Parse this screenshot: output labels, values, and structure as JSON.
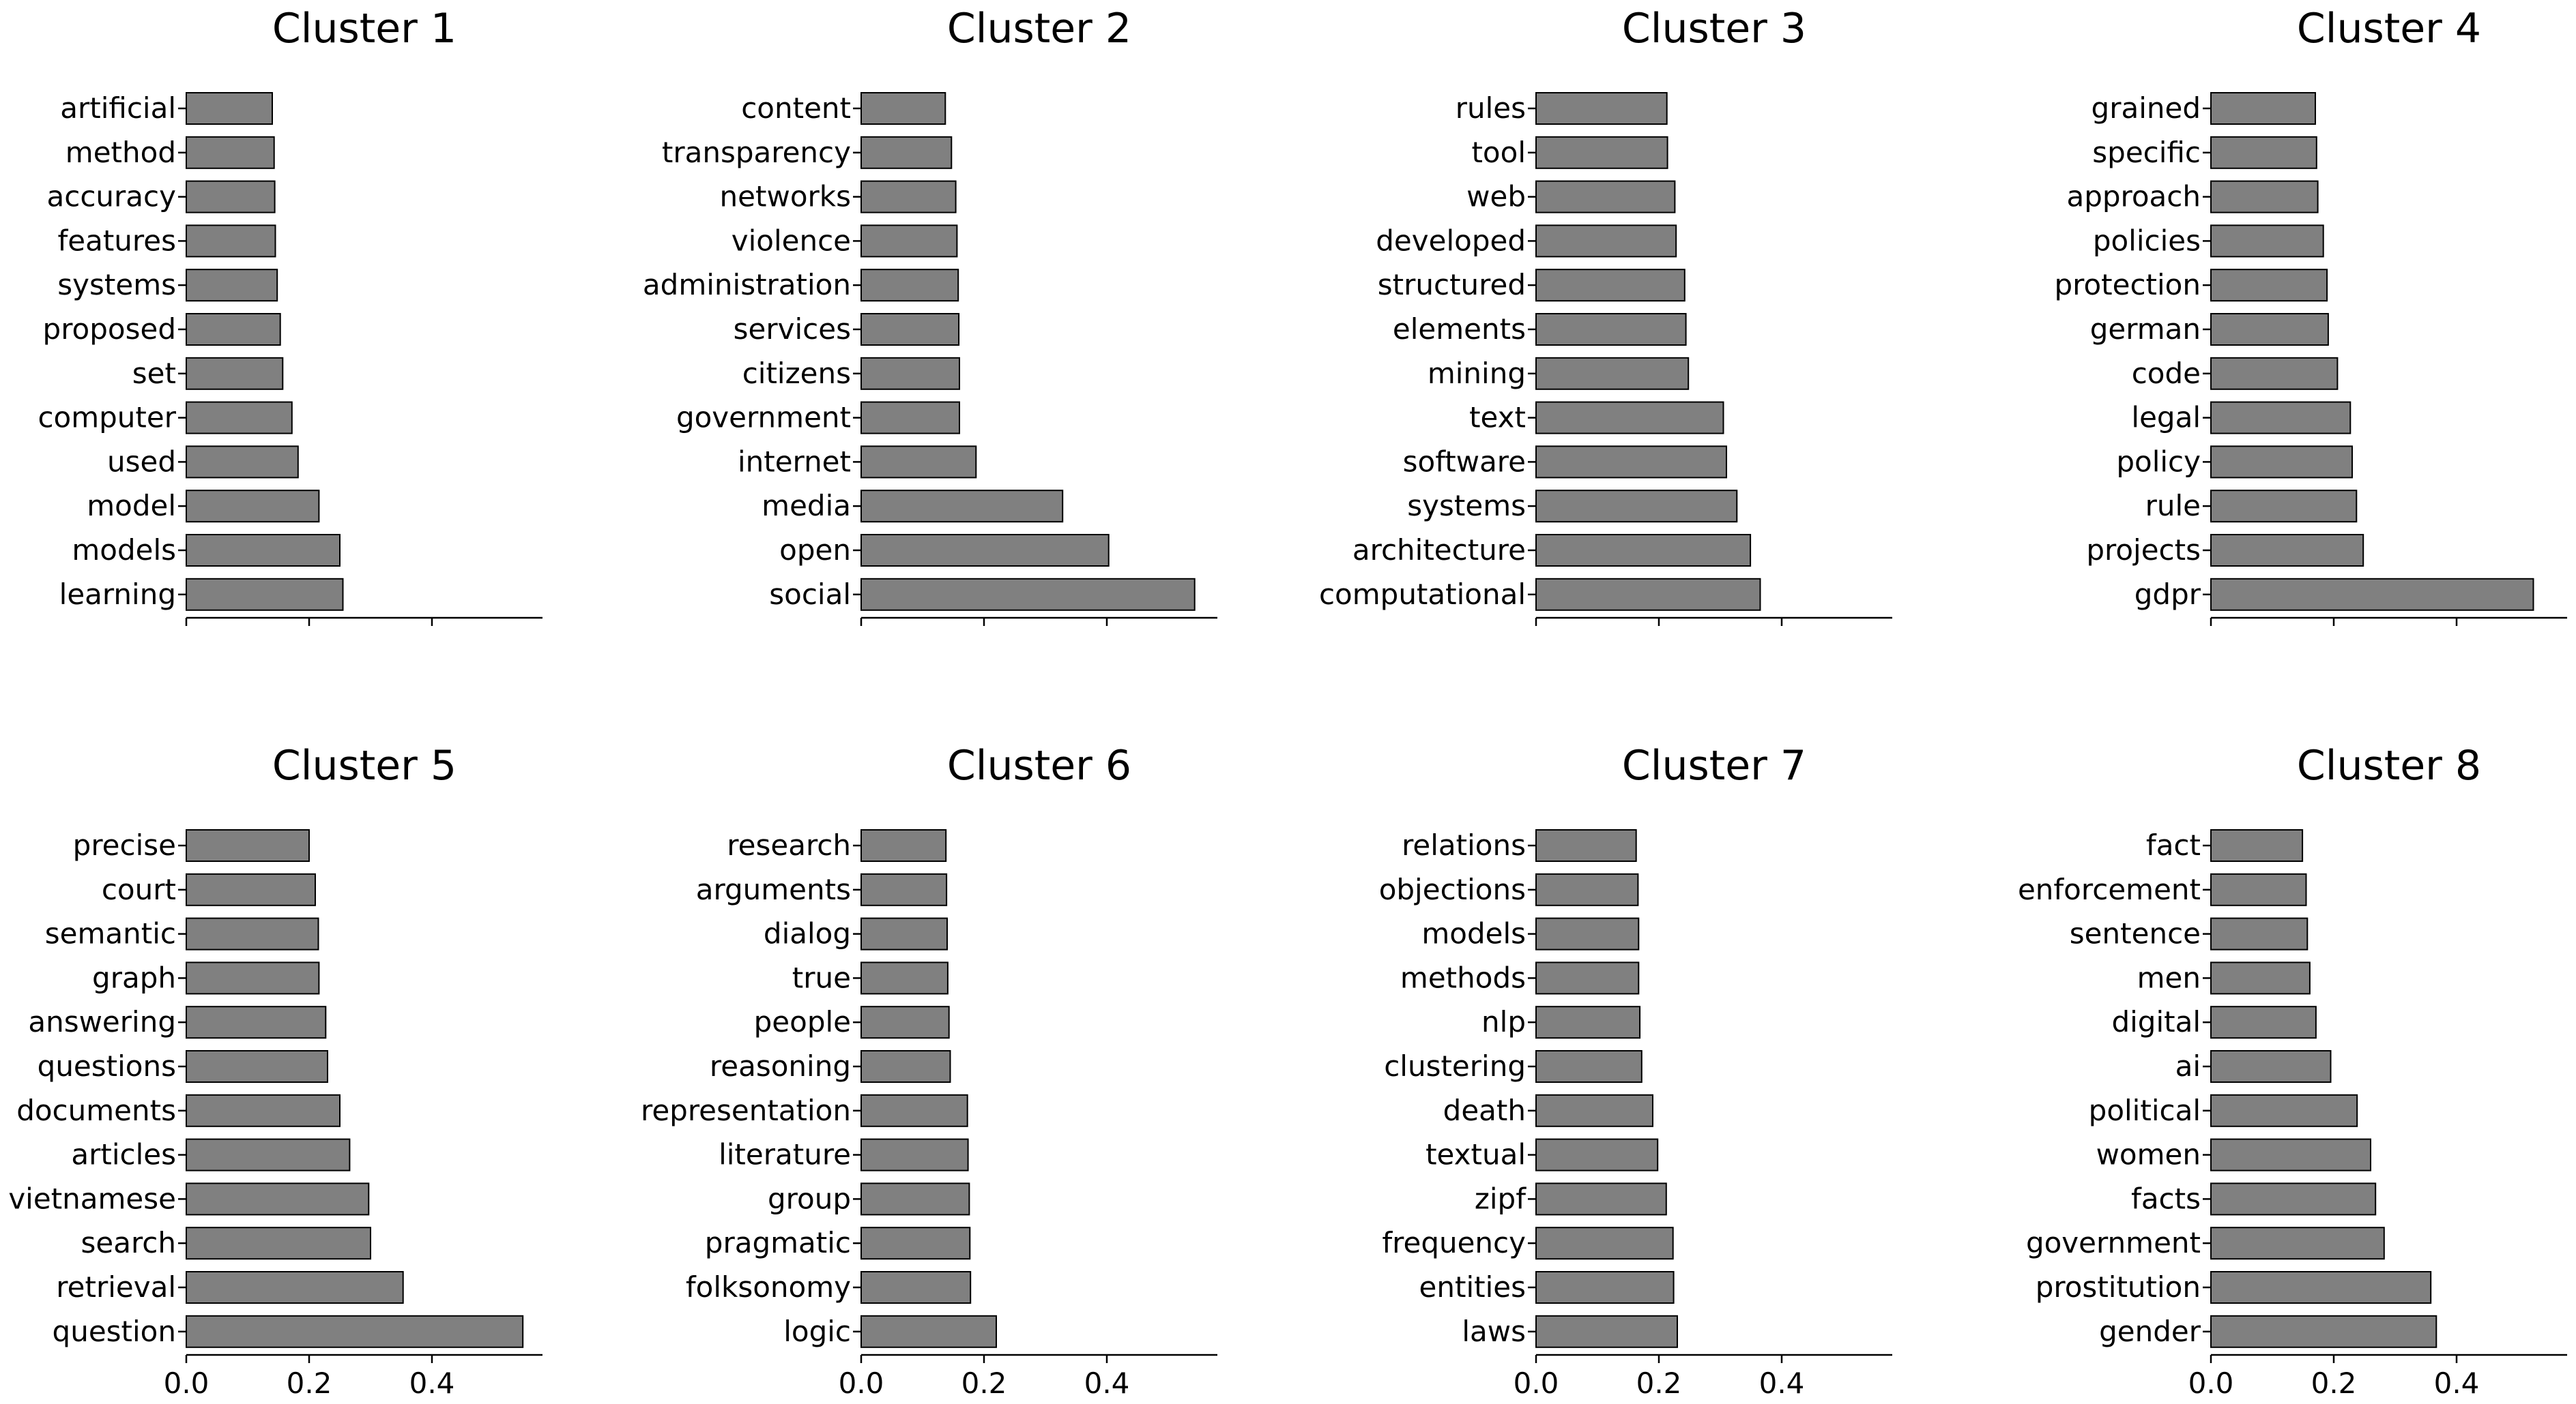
{
  "figure": {
    "bar_color": "#808080",
    "edge_color": "#000000"
  },
  "chart_data": [
    {
      "type": "bar",
      "orientation": "horizontal",
      "title": "Cluster 1",
      "xlim": [
        0,
        0.58
      ],
      "xticks": [
        "0.0",
        "0.2",
        "0.4"
      ],
      "show_tick_labels": false,
      "categories": [
        "artificial",
        "method",
        "accuracy",
        "features",
        "systems",
        "proposed",
        "set",
        "computer",
        "used",
        "model",
        "models",
        "learning"
      ],
      "values": [
        0.14,
        0.143,
        0.144,
        0.145,
        0.148,
        0.153,
        0.157,
        0.172,
        0.182,
        0.216,
        0.25,
        0.255
      ]
    },
    {
      "type": "bar",
      "orientation": "horizontal",
      "title": "Cluster 2",
      "xlim": [
        0,
        0.58
      ],
      "xticks": [
        "0.0",
        "0.2",
        "0.4"
      ],
      "show_tick_labels": false,
      "categories": [
        "content",
        "transparency",
        "networks",
        "violence",
        "administration",
        "services",
        "citizens",
        "government",
        "internet",
        "media",
        "open",
        "social"
      ],
      "values": [
        0.137,
        0.147,
        0.154,
        0.156,
        0.158,
        0.159,
        0.16,
        0.16,
        0.187,
        0.328,
        0.403,
        0.543
      ]
    },
    {
      "type": "bar",
      "orientation": "horizontal",
      "title": "Cluster 3",
      "xlim": [
        0,
        0.58
      ],
      "xticks": [
        "0.0",
        "0.2",
        "0.4"
      ],
      "show_tick_labels": false,
      "categories": [
        "rules",
        "tool",
        "web",
        "developed",
        "structured",
        "elements",
        "mining",
        "text",
        "software",
        "systems",
        "architecture",
        "computational"
      ],
      "values": [
        0.213,
        0.214,
        0.226,
        0.228,
        0.242,
        0.244,
        0.248,
        0.305,
        0.31,
        0.327,
        0.349,
        0.365
      ]
    },
    {
      "type": "bar",
      "orientation": "horizontal",
      "title": "Cluster 4",
      "xlim": [
        0,
        0.58
      ],
      "xticks": [
        "0.0",
        "0.2",
        "0.4"
      ],
      "show_tick_labels": false,
      "categories": [
        "grained",
        "specific",
        "approach",
        "policies",
        "protection",
        "german",
        "code",
        "legal",
        "policy",
        "rule",
        "projects",
        "gdpr"
      ],
      "values": [
        0.17,
        0.172,
        0.174,
        0.183,
        0.189,
        0.191,
        0.206,
        0.227,
        0.23,
        0.237,
        0.248,
        0.525
      ]
    },
    {
      "type": "bar",
      "orientation": "horizontal",
      "title": "Cluster 5",
      "xlim": [
        0,
        0.58
      ],
      "xticks": [
        "0.0",
        "0.2",
        "0.4"
      ],
      "show_tick_labels": true,
      "categories": [
        "precise",
        "court",
        "semantic",
        "graph",
        "answering",
        "questions",
        "documents",
        "articles",
        "vietnamese",
        "search",
        "retrieval",
        "question"
      ],
      "values": [
        0.2,
        0.21,
        0.215,
        0.216,
        0.227,
        0.23,
        0.25,
        0.266,
        0.297,
        0.3,
        0.353,
        0.548
      ]
    },
    {
      "type": "bar",
      "orientation": "horizontal",
      "title": "Cluster 6",
      "xlim": [
        0,
        0.58
      ],
      "xticks": [
        "0.0",
        "0.2",
        "0.4"
      ],
      "show_tick_labels": true,
      "categories": [
        "research",
        "arguments",
        "dialog",
        "true",
        "people",
        "reasoning",
        "representation",
        "literature",
        "group",
        "pragmatic",
        "folksonomy",
        "logic"
      ],
      "values": [
        0.138,
        0.139,
        0.14,
        0.141,
        0.143,
        0.145,
        0.173,
        0.174,
        0.176,
        0.177,
        0.178,
        0.22
      ]
    },
    {
      "type": "bar",
      "orientation": "horizontal",
      "title": "Cluster 7",
      "xlim": [
        0,
        0.58
      ],
      "xticks": [
        "0.0",
        "0.2",
        "0.4"
      ],
      "show_tick_labels": true,
      "categories": [
        "relations",
        "objections",
        "models",
        "methods",
        "nlp",
        "clustering",
        "death",
        "textual",
        "zipf",
        "frequency",
        "entities",
        "laws"
      ],
      "values": [
        0.163,
        0.166,
        0.167,
        0.167,
        0.169,
        0.172,
        0.19,
        0.198,
        0.212,
        0.223,
        0.224,
        0.23
      ]
    },
    {
      "type": "bar",
      "orientation": "horizontal",
      "title": "Cluster 8",
      "xlim": [
        0,
        0.58
      ],
      "xticks": [
        "0.0",
        "0.2",
        "0.4"
      ],
      "show_tick_labels": true,
      "categories": [
        "fact",
        "enforcement",
        "sentence",
        "men",
        "digital",
        "ai",
        "political",
        "women",
        "facts",
        "government",
        "prostitution",
        "gender"
      ],
      "values": [
        0.149,
        0.155,
        0.157,
        0.161,
        0.171,
        0.195,
        0.238,
        0.26,
        0.268,
        0.282,
        0.358,
        0.367
      ]
    }
  ]
}
